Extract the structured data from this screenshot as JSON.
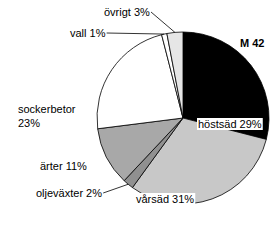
{
  "chart_data": {
    "type": "pie",
    "title": "M 42",
    "categories": [
      "höstsäd",
      "vårsäd",
      "oljeväxter",
      "ärter",
      "sockerbetor",
      "vall",
      "övrigt"
    ],
    "values": [
      29,
      31,
      2,
      11,
      23,
      1,
      3
    ],
    "value_labels": [
      "29%",
      "31%",
      "2%",
      "11%",
      "23%",
      "1%",
      "3%"
    ],
    "colors": [
      "#000000",
      "#c8c8c8",
      "#909090",
      "#a8a8a8",
      "#ffffff",
      "#ffffff",
      "#e6e6e6"
    ],
    "data_labels": true
  }
}
